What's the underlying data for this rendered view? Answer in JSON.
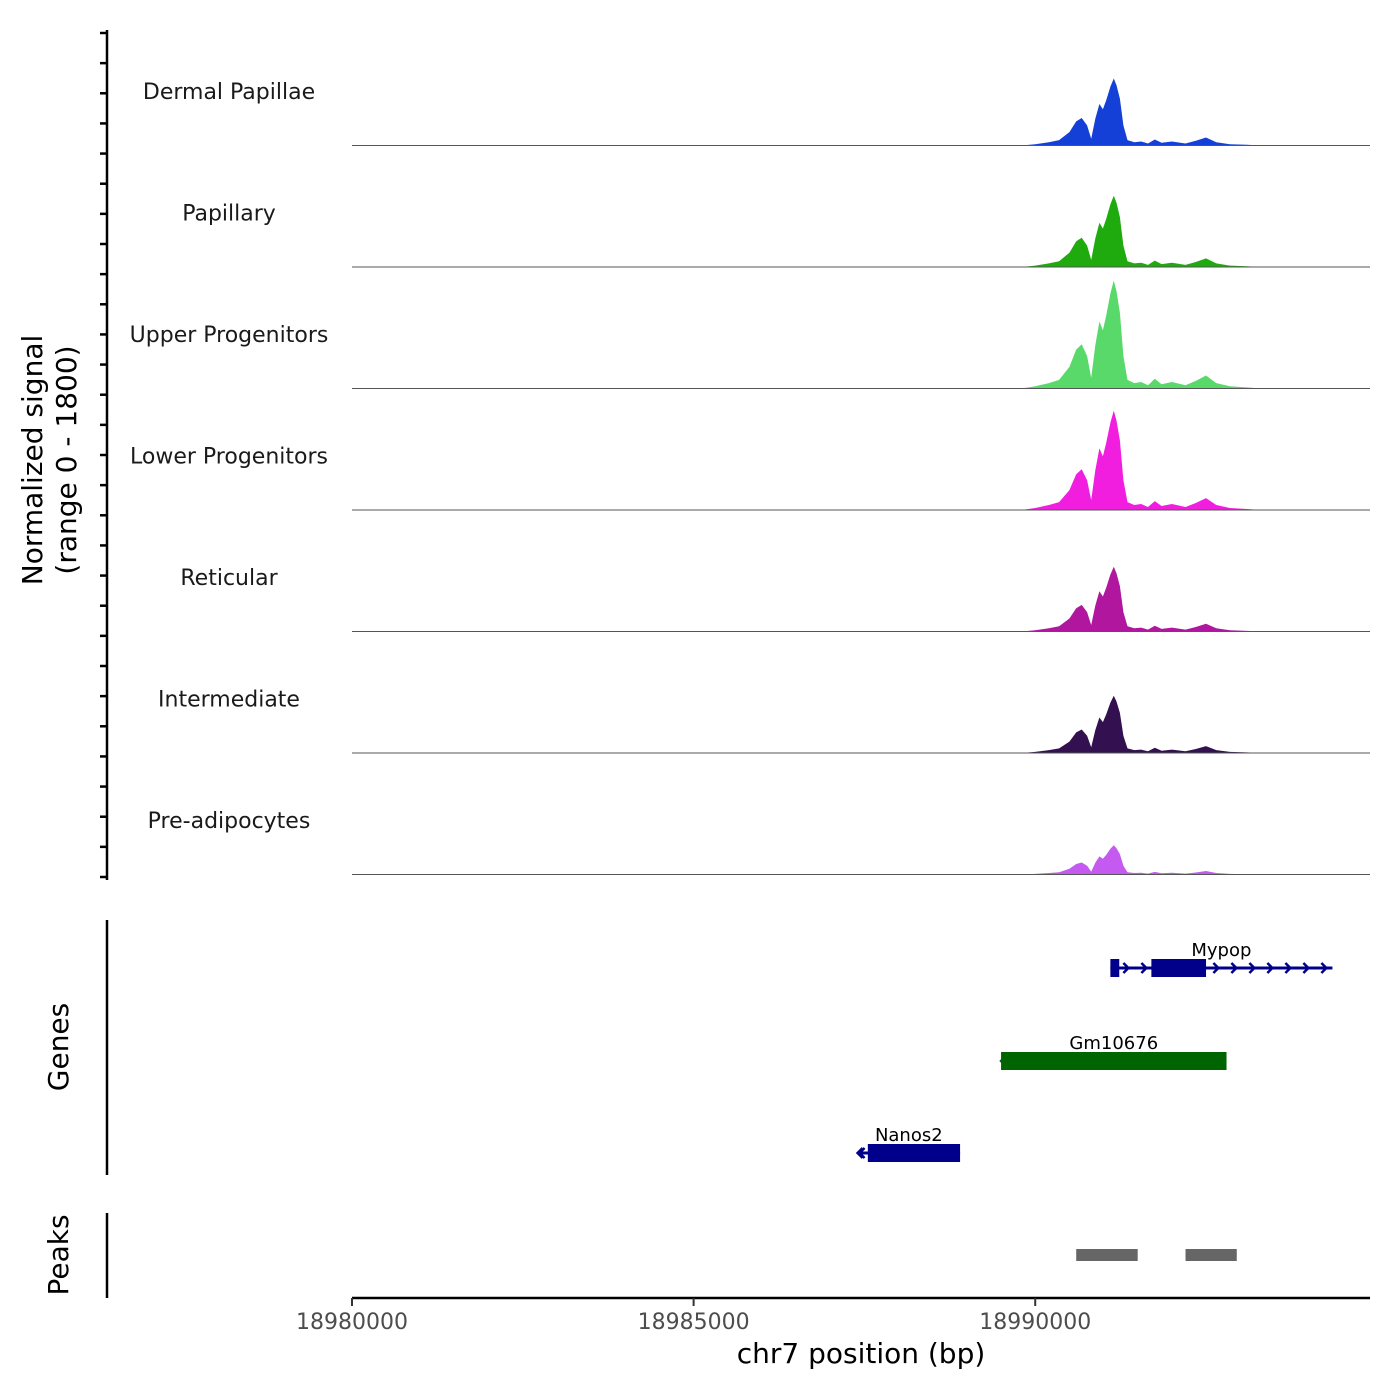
{
  "chart_data": {
    "type": "area",
    "title": "",
    "coverage": {
      "ylabel_line1": "Normalized signal",
      "ylabel_line2": "(range 0 - 1800)",
      "ylim": [
        0,
        1800
      ],
      "tracks": [
        {
          "name": "Dermal Papillae",
          "color": "#1440d8",
          "scale": 0.62
        },
        {
          "name": "Papillary",
          "color": "#1faa0e",
          "scale": 0.66
        },
        {
          "name": "Upper Progenitors",
          "color": "#58d96a",
          "scale": 1.0
        },
        {
          "name": "Lower Progenitors",
          "color": "#f11ee0",
          "scale": 0.92
        },
        {
          "name": "Reticular",
          "color": "#b0169e",
          "scale": 0.6
        },
        {
          "name": "Intermediate",
          "color": "#33104f",
          "scale": 0.53
        },
        {
          "name": "Pre-adipocytes",
          "color": "#c45af0",
          "scale": 0.27
        }
      ],
      "profile": [
        [
          18980000,
          0
        ],
        [
          18989800,
          0
        ],
        [
          18990000,
          0.02
        ],
        [
          18990200,
          0.05
        ],
        [
          18990350,
          0.08
        ],
        [
          18990500,
          0.2
        ],
        [
          18990600,
          0.36
        ],
        [
          18990680,
          0.41
        ],
        [
          18990760,
          0.3
        ],
        [
          18990820,
          0.1
        ],
        [
          18990880,
          0.4
        ],
        [
          18990940,
          0.62
        ],
        [
          18990990,
          0.54
        ],
        [
          18991040,
          0.68
        ],
        [
          18991100,
          0.88
        ],
        [
          18991150,
          1.0
        ],
        [
          18991190,
          0.9
        ],
        [
          18991240,
          0.7
        ],
        [
          18991290,
          0.3
        ],
        [
          18991350,
          0.08
        ],
        [
          18991450,
          0.05
        ],
        [
          18991550,
          0.06
        ],
        [
          18991650,
          0.03
        ],
        [
          18991750,
          0.09
        ],
        [
          18991850,
          0.04
        ],
        [
          18992000,
          0.06
        ],
        [
          18992200,
          0.03
        ],
        [
          18992350,
          0.07
        ],
        [
          18992500,
          0.12
        ],
        [
          18992650,
          0.05
        ],
        [
          18992850,
          0.02
        ],
        [
          18993100,
          0.01
        ],
        [
          18993300,
          0
        ],
        [
          18994400,
          0
        ]
      ]
    },
    "genes": {
      "ylabel": "Genes",
      "items": [
        {
          "name": "Mypop",
          "start": 18991100,
          "end": 18994350,
          "strand": "+",
          "row": 0,
          "color": "#00008b",
          "exons": [
            [
              18991100,
              18991230
            ],
            [
              18991700,
              18992500
            ]
          ]
        },
        {
          "name": "Gm10676",
          "start": 18989500,
          "end": 18992800,
          "strand": "-",
          "row": 1,
          "color": "#006400",
          "exons": [
            [
              18989500,
              18992800
            ]
          ]
        },
        {
          "name": "Nanos2",
          "start": 18987400,
          "end": 18988900,
          "strand": "-",
          "row": 2,
          "color": "#00008b",
          "exons": [
            [
              18987550,
              18988900
            ]
          ]
        }
      ]
    },
    "peaks": {
      "ylabel": "Peaks",
      "color": "#666666",
      "ranges": [
        [
          18990600,
          18991500
        ],
        [
          18992200,
          18992950
        ]
      ]
    },
    "x_axis": {
      "xlabel": "chr7 position (bp)",
      "xlim": [
        18980000,
        18994900
      ],
      "ticks": [
        18980000,
        18985000,
        18990000
      ],
      "tick_labels": [
        "18980000",
        "18985000",
        "18990000"
      ]
    }
  }
}
